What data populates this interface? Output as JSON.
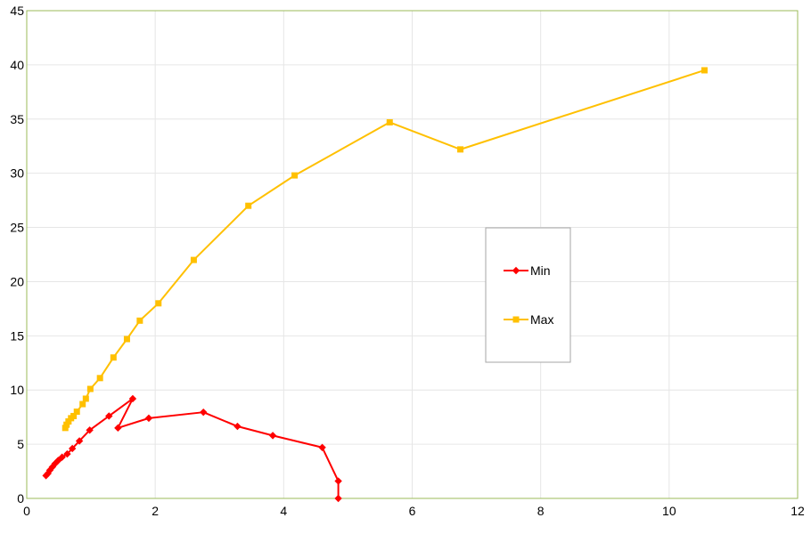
{
  "chart_data": {
    "type": "line",
    "title": "",
    "xlabel": "",
    "ylabel": "",
    "xlim": [
      0,
      12
    ],
    "ylim": [
      0,
      45
    ],
    "xticks": [
      0,
      2,
      4,
      6,
      8,
      10,
      12
    ],
    "yticks": [
      0,
      5,
      10,
      15,
      20,
      25,
      30,
      35,
      40,
      45
    ],
    "xtick_labels": [
      "0",
      "2",
      "4",
      "6",
      "8",
      "10",
      "12"
    ],
    "ytick_labels": [
      "0",
      "5",
      "10",
      "15",
      "20",
      "25",
      "30",
      "35",
      "40",
      "45"
    ],
    "grid": true,
    "legend_position": "center-right",
    "series": [
      {
        "name": "Min",
        "color": "#ff0000",
        "marker": "diamond",
        "points": [
          [
            0.3,
            2.1
          ],
          [
            0.33,
            2.3
          ],
          [
            0.36,
            2.6
          ],
          [
            0.4,
            2.9
          ],
          [
            0.44,
            3.2
          ],
          [
            0.49,
            3.5
          ],
          [
            0.55,
            3.8
          ],
          [
            0.63,
            4.1
          ],
          [
            0.71,
            4.6
          ],
          [
            0.82,
            5.3
          ],
          [
            0.98,
            6.3
          ],
          [
            1.28,
            7.6
          ],
          [
            1.65,
            9.2
          ],
          [
            1.42,
            6.5
          ],
          [
            1.9,
            7.4
          ],
          [
            2.75,
            7.95
          ],
          [
            3.28,
            6.65
          ],
          [
            3.83,
            5.8
          ],
          [
            4.6,
            4.7
          ],
          [
            4.85,
            1.6
          ],
          [
            4.85,
            0.0
          ]
        ]
      },
      {
        "name": "Max",
        "color": "#ffc000",
        "marker": "square",
        "points": [
          [
            0.6,
            6.5
          ],
          [
            0.62,
            6.8
          ],
          [
            0.65,
            7.1
          ],
          [
            0.69,
            7.4
          ],
          [
            0.73,
            7.6
          ],
          [
            0.78,
            8.0
          ],
          [
            0.87,
            8.7
          ],
          [
            0.92,
            9.2
          ],
          [
            0.99,
            10.1
          ],
          [
            1.14,
            11.1
          ],
          [
            1.35,
            13.0
          ],
          [
            1.56,
            14.7
          ],
          [
            1.76,
            16.4
          ],
          [
            2.05,
            18.0
          ],
          [
            2.6,
            22.0
          ],
          [
            3.45,
            27.0
          ],
          [
            4.17,
            29.8
          ],
          [
            5.65,
            34.7
          ],
          [
            6.75,
            32.2
          ],
          [
            10.55,
            39.5
          ]
        ]
      }
    ]
  }
}
